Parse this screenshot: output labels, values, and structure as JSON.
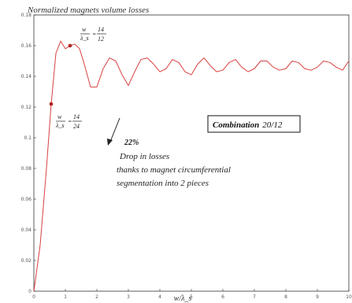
{
  "chart_data": {
    "type": "line",
    "title": "Normalized magnets volume losses",
    "xlabel": "w/λ_s",
    "ylabel": "",
    "xlim": [
      0,
      10
    ],
    "ylim": [
      0,
      0.18
    ],
    "x_ticks": [
      "0",
      "1",
      "2",
      "3",
      "4",
      "5",
      "6",
      "7",
      "8",
      "9",
      "10"
    ],
    "y_ticks": [
      "0",
      "0.02",
      "0.04",
      "0.06",
      "0.08",
      "0.1",
      "0.12",
      "0.14",
      "0.16",
      "0.18"
    ],
    "grid": false,
    "series": [
      {
        "color": "#d94040",
        "x": [
          0,
          0.2,
          0.4,
          0.55,
          0.7,
          0.85,
          1.0,
          1.15,
          1.3,
          1.45,
          1.6,
          1.8,
          2.0,
          2.2,
          2.4,
          2.6,
          2.8,
          3.0,
          3.2,
          3.4,
          3.6,
          3.8,
          4.0,
          4.2,
          4.4,
          4.6,
          4.8,
          5.0,
          5.2,
          5.4,
          5.6,
          5.8,
          6.0,
          6.2,
          6.4,
          6.6,
          6.8,
          7.0,
          7.2,
          7.4,
          7.6,
          7.8,
          8.0,
          8.2,
          8.4,
          8.6,
          8.8,
          9.0,
          9.2,
          9.4,
          9.6,
          9.8,
          10.0
        ],
        "y": [
          0.0,
          0.03,
          0.08,
          0.122,
          0.155,
          0.163,
          0.158,
          0.16,
          0.161,
          0.158,
          0.148,
          0.133,
          0.133,
          0.145,
          0.152,
          0.15,
          0.141,
          0.134,
          0.143,
          0.151,
          0.152,
          0.148,
          0.143,
          0.145,
          0.151,
          0.149,
          0.143,
          0.141,
          0.148,
          0.152,
          0.147,
          0.143,
          0.144,
          0.149,
          0.151,
          0.146,
          0.143,
          0.145,
          0.15,
          0.15,
          0.146,
          0.144,
          0.145,
          0.15,
          0.149,
          0.145,
          0.144,
          0.146,
          0.15,
          0.149,
          0.146,
          0.144,
          0.15
        ]
      }
    ],
    "markers": [
      {
        "x": 0.55,
        "y": 0.122,
        "label_num": "14",
        "label_den": "24"
      },
      {
        "x": 1.15,
        "y": 0.16,
        "label_num": "14",
        "label_den": "12"
      }
    ],
    "frac_prefix": "w",
    "frac_prefix_den": "λ_s",
    "annotations": {
      "drop_percent": "22%",
      "drop_line1": "Drop in losses",
      "drop_line2": "thanks to magnet circumferential",
      "drop_line3": "segmentation into 2 pieces",
      "combination_bold": "Combination",
      "combination_value": "20/12"
    }
  }
}
